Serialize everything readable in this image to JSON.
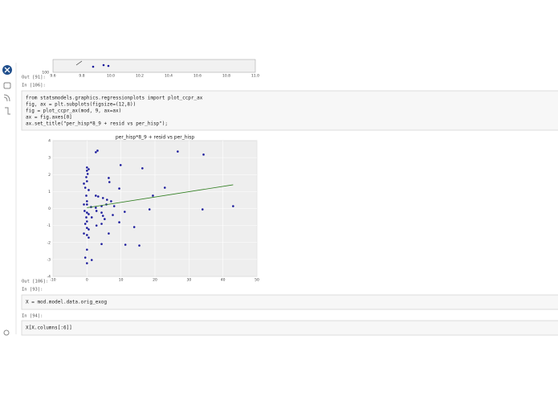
{
  "prev_plot": {
    "xtick_labels": [
      "9.6",
      "9.8",
      "10.0",
      "10.2",
      "10.4",
      "10.6",
      "10.8",
      "11.0"
    ],
    "ytick_label": "100"
  },
  "cells": [
    {
      "prompt": "Out [91]:"
    },
    {
      "prompt": "In [106]:",
      "code": [
        "from statsmodels.graphics.regressionplots import plot_ccpr_ax",
        "fig, ax = plt.subplots(figsize=(12,8))",
        "fig = plot_ccpr_ax(mod, 9, ax=ax)",
        "ax = fig.axes[0]",
        "ax.set_title(\"per_hisp*8_9 + resid vs per_hisp\");"
      ]
    },
    {
      "prompt": "Out [106]:"
    },
    {
      "prompt": "In [93]:",
      "code": [
        "X = mod.model.data.orig_exog"
      ]
    },
    {
      "prompt": "In [94]:",
      "code": [
        "X[X.columns[:6]]"
      ]
    }
  ],
  "chart_data": {
    "type": "scatter",
    "title": "per_hisp*8_9 + resid vs per_hisp",
    "xlim": [
      -10,
      50
    ],
    "xticks": [
      -10,
      0,
      10,
      20,
      30,
      40,
      50
    ],
    "ylim": [
      -4,
      4
    ],
    "yticks": [
      -4,
      -3,
      -2,
      -1,
      0,
      1,
      2,
      3,
      4
    ],
    "grid": true,
    "points": {
      "color": "#1a1a9c",
      "x": [
        2.6,
        3.1,
        26.7,
        34.3,
        9.9,
        16.3,
        0,
        0,
        0.2,
        -0.2,
        0.5,
        0,
        -0.9,
        6.4,
        6.6,
        -0.5,
        9.5,
        22.9,
        0.5,
        2.6,
        3.3,
        -0.2,
        4.7,
        5.9,
        7.1,
        19.4,
        0,
        0,
        -0.9,
        1.2,
        2.6,
        4.3,
        5.7,
        8.0,
        18.4,
        34.0,
        43.0,
        -0.7,
        0,
        0.5,
        2.8,
        4.3,
        11.1,
        -0.2,
        1.4,
        4.7,
        7.6,
        5.2,
        0,
        -0.5,
        2.8,
        4.3,
        9.5,
        0,
        0.5,
        -0.9,
        0,
        13.9,
        6.4,
        0.5,
        4.3,
        11.3,
        15.4,
        0,
        -0.5,
        1.4,
        0
      ],
      "y": [
        3.32,
        3.41,
        3.36,
        3.18,
        2.56,
        2.37,
        2.42,
        2.23,
        2.04,
        1.85,
        2.32,
        1.61,
        1.47,
        1.8,
        1.56,
        1.23,
        1.18,
        1.23,
        1.09,
        0.76,
        0.71,
        0.76,
        0.62,
        0.52,
        0.43,
        0.76,
        0.43,
        0.24,
        0.24,
        0.09,
        0.05,
        0.14,
        0.24,
        0.14,
        -0.05,
        -0.05,
        0.14,
        -0.14,
        -0.24,
        -0.33,
        -0.14,
        -0.24,
        -0.19,
        -0.52,
        -0.52,
        -0.43,
        -0.38,
        -0.62,
        -0.76,
        -0.9,
        -1.0,
        -0.9,
        -0.81,
        -1.14,
        -1.23,
        -1.47,
        -1.56,
        -1.09,
        -1.47,
        -1.71,
        -2.09,
        -2.13,
        -2.18,
        -2.42,
        -2.89,
        -3.03,
        -3.22
      ]
    },
    "fit_line": {
      "color": "#2e7d1e",
      "x": [
        0,
        43
      ],
      "y": [
        0.05,
        1.4
      ]
    }
  }
}
